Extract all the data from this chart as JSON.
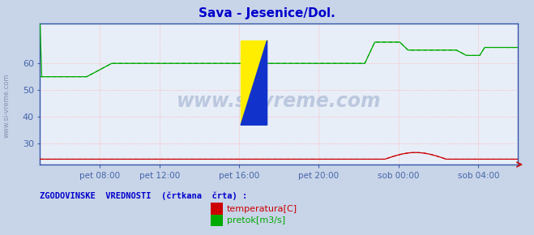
{
  "title": "Sava - Jesenice/Dol.",
  "title_color": "#0000cc",
  "bg_color": "#c8d4e8",
  "plot_bg_color": "#e8eef8",
  "grid_color_h": "#ffaaaa",
  "grid_color_v": "#ffaaaa",
  "ylabel_color": "#4466aa",
  "xlabel_color": "#4466aa",
  "axis_color": "#3355aa",
  "yticks": [
    30,
    40,
    50,
    60
  ],
  "ylim": [
    22,
    75
  ],
  "x_tick_labels": [
    "pet 08:00",
    "pet 12:00",
    "pet 16:00",
    "pet 20:00",
    "sob 00:00",
    "sob 04:00"
  ],
  "x_tick_positions": [
    0.125,
    0.25,
    0.417,
    0.583,
    0.75,
    0.917
  ],
  "watermark_text": "www.si-vreme.com",
  "legend_title": "ZGODOVINSKE  VREDNOSTI  (črtkana  črta) :",
  "legend_color": "#0000cc",
  "legend_entries": [
    "temperatura[C]",
    "pretok[m3/s]"
  ],
  "legend_entry_colors": [
    "#cc0000",
    "#00aa00"
  ],
  "temp_color": "#cc0000",
  "flow_color": "#00aa00"
}
